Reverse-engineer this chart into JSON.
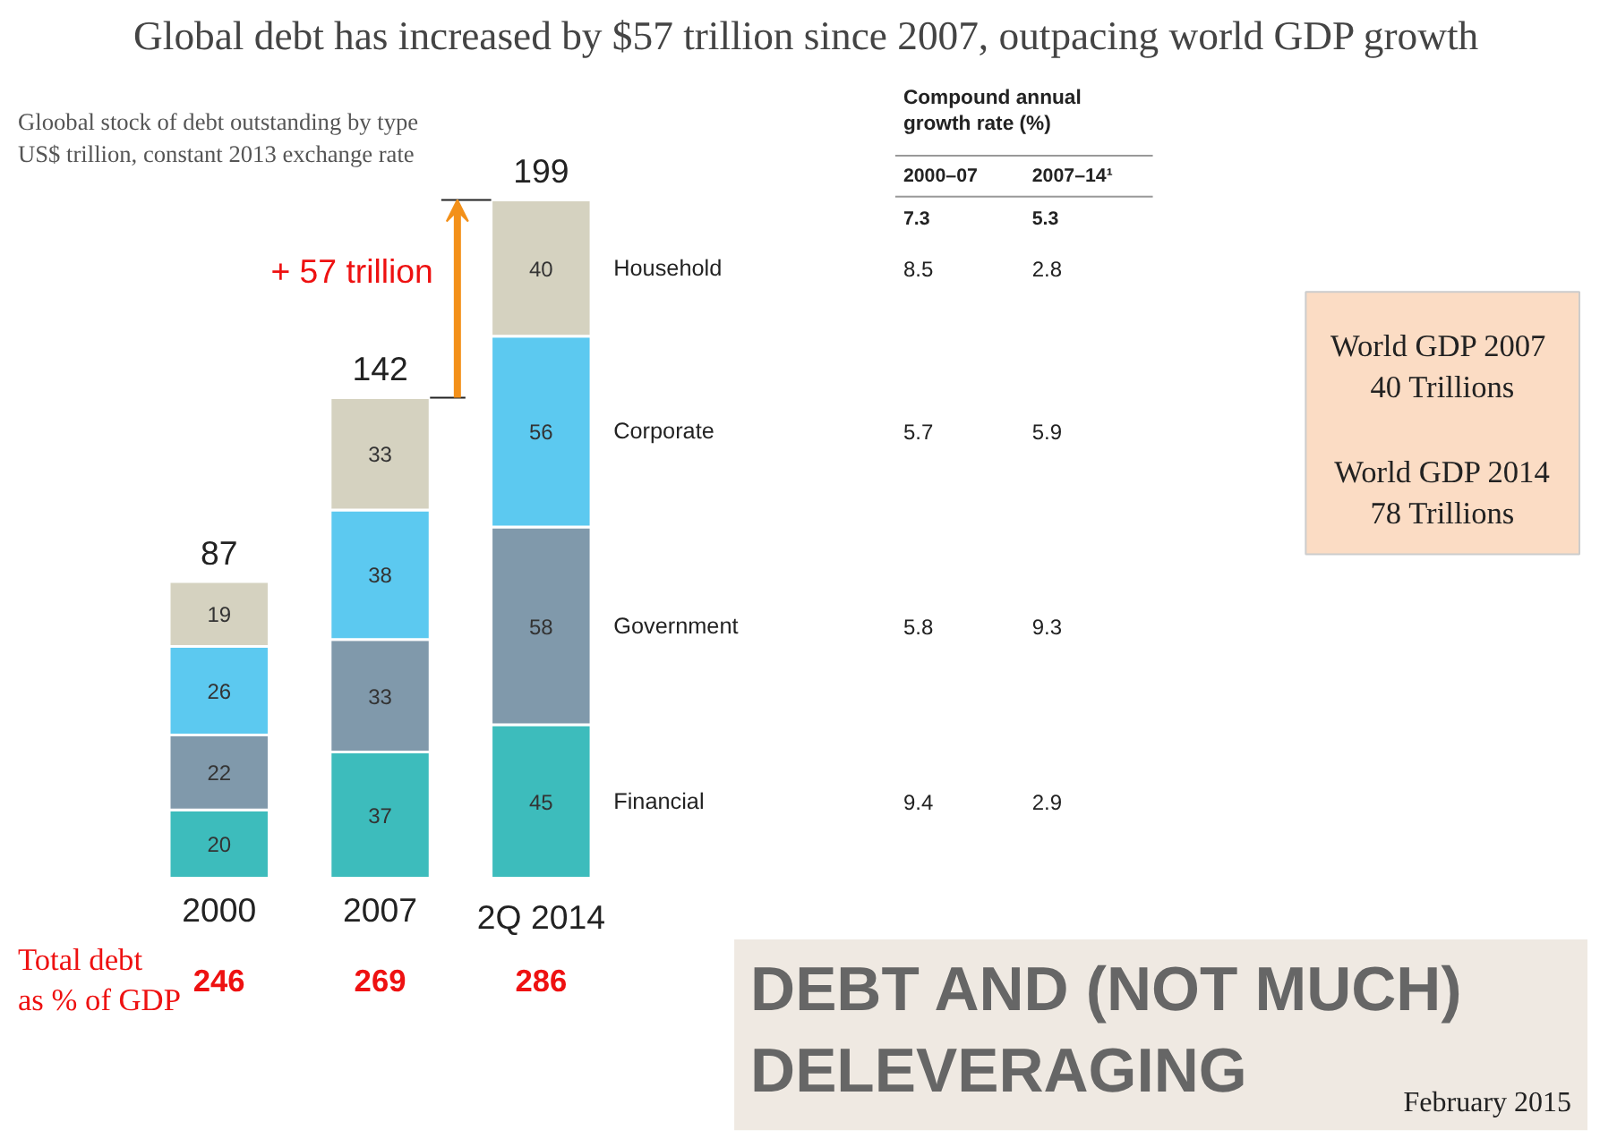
{
  "chart_data": {
    "type": "bar",
    "stacked": true,
    "data_labels": true,
    "title": "Global debt has increased by $57 trillion since 2007, outpacing world GDP growth",
    "subtitle": "Gloobal stock of debt outstanding by type\nUS$ trillion, constant 2013 exchange rate",
    "categories": [
      "2000",
      "2007",
      "2Q 2014"
    ],
    "series": [
      {
        "name": "Financial",
        "color": "#3dbcbc",
        "values": [
          20,
          37,
          45
        ]
      },
      {
        "name": "Government",
        "color": "#8099ab",
        "values": [
          22,
          33,
          58
        ]
      },
      {
        "name": "Corporate",
        "color": "#5cc9f0",
        "values": [
          26,
          38,
          56
        ]
      },
      {
        "name": "Household",
        "color": "#d5d2c0",
        "values": [
          19,
          33,
          40
        ]
      }
    ],
    "totals": [
      "87",
      "142",
      "199"
    ],
    "annotations": [
      "+ 57 trillion",
      "Compound annual\ngrowth rate (%)",
      "2000–07",
      "2007–14¹",
      "7.3",
      "5.3",
      "2.8",
      "8.5",
      "5.9",
      "5.7",
      "9.3",
      "5.8",
      "2.9",
      "9.4",
      "World  GDP 2007\n40 Trillions",
      "World GDP 2014\n78 Trillions",
      "Total debt\nas % of GDP",
      "246",
      "269",
      "286",
      "DEBT AND (NOT MUCH)\nDELEVERAGING",
      "February 2015"
    ]
  }
}
